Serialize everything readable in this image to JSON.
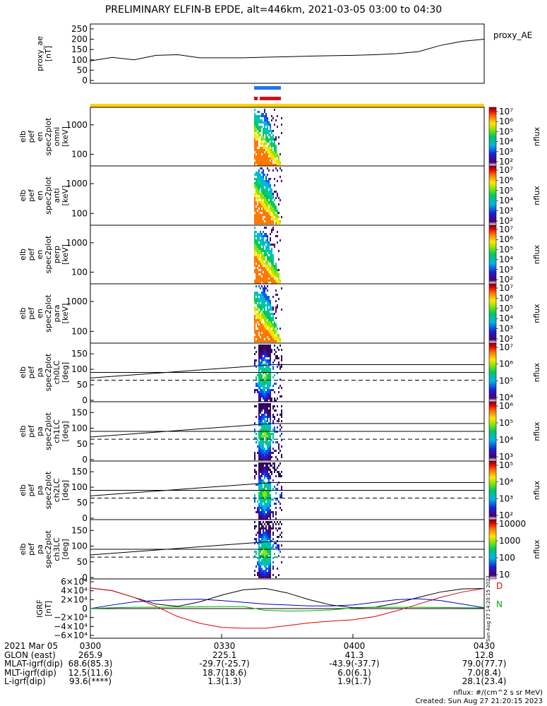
{
  "title": "PRELIMINARY ELFIN-B EPDE, alt=446km, 2021-03-05 03:00 to 04:30",
  "chart_data": [
    {
      "type": "line",
      "id": "proxy_ae",
      "ylabel_lines": [
        "proxy_ae",
        "[nT]"
      ],
      "legend": "proxy_AE",
      "yticks": [
        "250",
        "200",
        "150",
        "100",
        "50",
        "0"
      ],
      "ylim": [
        0,
        260
      ],
      "x_minutes": [
        0,
        5,
        10,
        15,
        20,
        25,
        30,
        35,
        40,
        45,
        50,
        55,
        60,
        65,
        70,
        75,
        80,
        85,
        90
      ],
      "values": [
        95,
        112,
        100,
        122,
        125,
        110,
        110,
        110,
        113,
        115,
        118,
        120,
        122,
        125,
        130,
        140,
        170,
        190,
        200
      ]
    },
    {
      "type": "heatmap",
      "id": "spec-omni",
      "ylabel_lines": [
        "elb",
        "pef",
        "en",
        "spec2plot",
        "omni",
        "[keV]"
      ],
      "yticks": [
        "1000",
        "100"
      ],
      "colorbar_ticks": [
        "10⁷",
        "10⁶",
        "10⁵",
        "10⁴",
        "10³",
        "10²"
      ],
      "colorbar_label": "nflux"
    },
    {
      "type": "heatmap",
      "id": "spec-anti",
      "ylabel_lines": [
        "elb",
        "pef",
        "en",
        "spec2plot",
        "anti",
        "[keV]"
      ],
      "yticks": [
        "1000",
        "100"
      ],
      "colorbar_ticks": [
        "10⁷",
        "10⁶",
        "10⁵",
        "10⁴",
        "10³",
        "10²"
      ],
      "colorbar_label": "nflux"
    },
    {
      "type": "heatmap",
      "id": "spec-perp",
      "ylabel_lines": [
        "elb",
        "pef",
        "en",
        "spec2plot",
        "perp",
        "[keV]"
      ],
      "yticks": [
        "1000",
        "100"
      ],
      "colorbar_ticks": [
        "10⁷",
        "10⁶",
        "10⁵",
        "10⁴",
        "10³",
        "10²"
      ],
      "colorbar_label": "nflux"
    },
    {
      "type": "heatmap",
      "id": "spec-para",
      "ylabel_lines": [
        "elb",
        "pef",
        "en",
        "spec2plot",
        "para",
        "[keV]"
      ],
      "yticks": [
        "1000",
        "100"
      ],
      "colorbar_ticks": [
        "10⁷",
        "10⁶",
        "10⁵",
        "10⁴",
        "10³",
        "10²"
      ],
      "colorbar_label": "nflux"
    },
    {
      "type": "heatmap",
      "id": "pa-ch0",
      "ylabel_lines": [
        "elb",
        "pef",
        "pa",
        "spec2plot",
        "ch0LC",
        "[deg]"
      ],
      "yticks": [
        "150",
        "100",
        "50",
        "0"
      ],
      "colorbar_ticks": [
        "10⁷",
        "10⁶",
        "10⁵",
        "10⁴"
      ],
      "colorbar_label": "nflux"
    },
    {
      "type": "heatmap",
      "id": "pa-ch1",
      "ylabel_lines": [
        "elb",
        "pef",
        "pa",
        "spec2plot",
        "ch1LC",
        "[deg]"
      ],
      "yticks": [
        "150",
        "100",
        "50",
        "0"
      ],
      "colorbar_ticks": [
        "10⁶",
        "10⁵",
        "10⁴",
        "10³"
      ],
      "colorbar_label": "nflux"
    },
    {
      "type": "heatmap",
      "id": "pa-ch2",
      "ylabel_lines": [
        "elb",
        "pef",
        "pa",
        "spec2plot",
        "ch2LC",
        "[deg]"
      ],
      "yticks": [
        "150",
        "100",
        "50",
        "0"
      ],
      "colorbar_ticks": [
        "10⁵",
        "10⁴",
        "10³",
        "10²"
      ],
      "colorbar_label": "nflux"
    },
    {
      "type": "heatmap",
      "id": "pa-ch3",
      "ylabel_lines": [
        "elb",
        "pef",
        "pa",
        "spec2plot",
        "ch3LC",
        "[deg]"
      ],
      "yticks": [
        "150",
        "100",
        "50",
        "0"
      ],
      "colorbar_ticks": [
        "10000",
        "1000",
        "100",
        "10"
      ],
      "colorbar_label": "nflux"
    },
    {
      "type": "line",
      "id": "igrf",
      "ylabel_lines": [
        "IGRF",
        "[nT]"
      ],
      "yticks": [
        "6×10⁴",
        "4×10⁴",
        "2×10⁴",
        "0",
        "−2×10⁴",
        "−4×10⁴",
        "−6×10⁴"
      ],
      "ylim": [
        -60000,
        60000
      ],
      "side_labels": [
        "D",
        "N"
      ],
      "side_colors": [
        "#e00000",
        "#00b000"
      ],
      "stamp": "Sun Aug 27 14:20:15 2023",
      "x_minutes": [
        0,
        5,
        10,
        15,
        20,
        25,
        30,
        35,
        40,
        45,
        50,
        55,
        60,
        65,
        70,
        75,
        80,
        85,
        90
      ],
      "series": [
        {
          "color": "#000000",
          "values": [
            46000,
            40000,
            25000,
            10000,
            5000,
            15000,
            30000,
            42000,
            45000,
            35000,
            20000,
            8000,
            2000,
            3000,
            12000,
            25000,
            37000,
            44000,
            45000
          ]
        },
        {
          "color": "#e00000",
          "values": [
            46000,
            40000,
            25000,
            5000,
            -18000,
            -33000,
            -42000,
            -44000,
            -44000,
            -38000,
            -32000,
            -28000,
            -25000,
            -18000,
            -5000,
            10000,
            25000,
            37000,
            45000
          ]
        },
        {
          "color": "#0000c8",
          "values": [
            0,
            8000,
            15000,
            18000,
            20000,
            21000,
            18000,
            14000,
            10000,
            8000,
            6000,
            6000,
            8000,
            14000,
            20000,
            22000,
            18000,
            10000,
            2000
          ]
        },
        {
          "color": "#00b000",
          "values": [
            0,
            2000,
            3000,
            3000,
            3500,
            4000,
            4500,
            4500,
            -4000,
            -5500,
            -5000,
            -3000,
            1000,
            3000,
            3000,
            3000,
            2500,
            2000,
            1500
          ]
        }
      ]
    }
  ],
  "footer": {
    "rows": [
      {
        "label": "2021 Mar 05",
        "values": [
          "0300",
          "0330",
          "0400",
          "0430"
        ]
      },
      {
        "label": "GLON (east)",
        "values": [
          "265.9",
          "225.1",
          "41.3",
          "12.8"
        ]
      },
      {
        "label": "MLAT-igrf(dip)",
        "values": [
          "68.6(85.3)",
          "-29.7(-25.7)",
          "-43.9(-37.7)",
          "79.0(77.7)"
        ]
      },
      {
        "label": "MLT-igrf(dip)",
        "values": [
          "12.5(11.6)",
          "18.7(18.6)",
          "6.0(6.1)",
          "7.0(8.4)"
        ]
      },
      {
        "label": "L-igrf(dip)",
        "values": [
          "93.6(****)",
          "1.3(1.3)",
          "1.9(1.7)",
          "28.1(23.4)"
        ]
      }
    ],
    "units_note": "nflux: #/(cm^2 s sr MeV)",
    "created_note": "Created: Sun Aug 27 21:20:15 2023"
  },
  "colors": {
    "orbit_bar_blue": "#1e78e6",
    "orbit_bar_red": "#d41414",
    "orbit_bar_yellow": "#ffd400"
  }
}
